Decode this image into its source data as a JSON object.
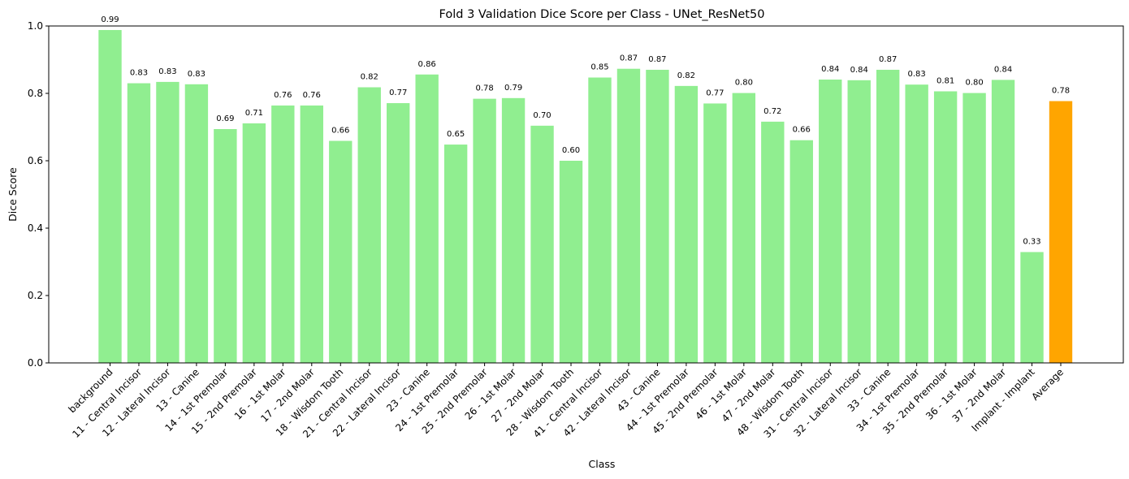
{
  "chart_data": {
    "type": "bar",
    "title": "Fold 3 Validation Dice Score per Class - UNet_ResNet50",
    "xlabel": "Class",
    "ylabel": "Dice Score",
    "ylim": [
      0,
      1.0
    ],
    "yticks": [
      "0.0",
      "0.2",
      "0.4",
      "0.6",
      "0.8",
      "1.0"
    ],
    "grid": false,
    "colors": {
      "bar": "#90ee90",
      "average": "#ffa500"
    },
    "categories": [
      "background",
      "11 - Central Incisor",
      "12 - Lateral Incisor",
      "13 - Canine",
      "14 - 1st Premolar",
      "15 - 2nd Premolar",
      "16 - 1st Molar",
      "17 - 2nd Molar",
      "18 - Wisdom Tooth",
      "21 - Central Incisor",
      "22 - Lateral Incisor",
      "23 - Canine",
      "24 - 1st Premolar",
      "25 - 2nd Premolar",
      "26 - 1st Molar",
      "27 - 2nd Molar",
      "28 - Wisdom Tooth",
      "41 - Central Incisor",
      "42 - Lateral Incisor",
      "43 - Canine",
      "44 - 1st Premolar",
      "45 - 2nd Premolar",
      "46 - 1st Molar",
      "47 - 2nd Molar",
      "48 - Wisdom Tooth",
      "31 - Central Incisor",
      "32 - Lateral Incisor",
      "33 - Canine",
      "34 - 1st Premolar",
      "35 - 2nd Premolar",
      "36 - 1st Molar",
      "37 - 2nd Molar",
      "Implant - Implant",
      "Average"
    ],
    "values": [
      0.988,
      0.83,
      0.834,
      0.827,
      0.694,
      0.711,
      0.764,
      0.764,
      0.659,
      0.818,
      0.771,
      0.856,
      0.648,
      0.784,
      0.786,
      0.704,
      0.6,
      0.847,
      0.873,
      0.87,
      0.822,
      0.77,
      0.801,
      0.716,
      0.661,
      0.841,
      0.839,
      0.87,
      0.826,
      0.806,
      0.801,
      0.84,
      0.329,
      0.777
    ],
    "value_labels": [
      "0.99",
      "0.83",
      "0.83",
      "0.83",
      "0.69",
      "0.71",
      "0.76",
      "0.76",
      "0.66",
      "0.82",
      "0.77",
      "0.86",
      "0.65",
      "0.78",
      "0.79",
      "0.70",
      "0.60",
      "0.85",
      "0.87",
      "0.87",
      "0.82",
      "0.77",
      "0.80",
      "0.72",
      "0.66",
      "0.84",
      "0.84",
      "0.87",
      "0.83",
      "0.81",
      "0.80",
      "0.84",
      "0.33",
      "0.78"
    ]
  }
}
